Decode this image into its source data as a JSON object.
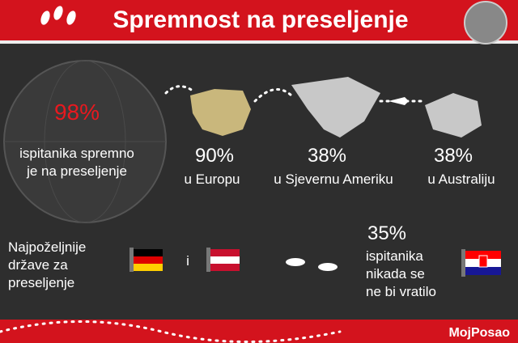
{
  "header": {
    "title": "Spremnost na preseljenje"
  },
  "main_stat": {
    "value": "98%",
    "lines": [
      "ispitanika spremno",
      "je na preseljenje"
    ]
  },
  "destinations": [
    {
      "value": "90%",
      "label": "u Europu"
    },
    {
      "value": "38%",
      "label": "u Sjevernu Ameriku"
    },
    {
      "value": "38%",
      "label": "u Australiju"
    }
  ],
  "preferred": {
    "lines": [
      "Najpoželjnije",
      "države za",
      "preseljenje"
    ],
    "connector": "i"
  },
  "return_stat": {
    "value": "35%",
    "lines": [
      "ispitanika",
      "nikada se",
      "ne bi vratilo"
    ]
  },
  "footer": {
    "brand": "MojPosao"
  }
}
